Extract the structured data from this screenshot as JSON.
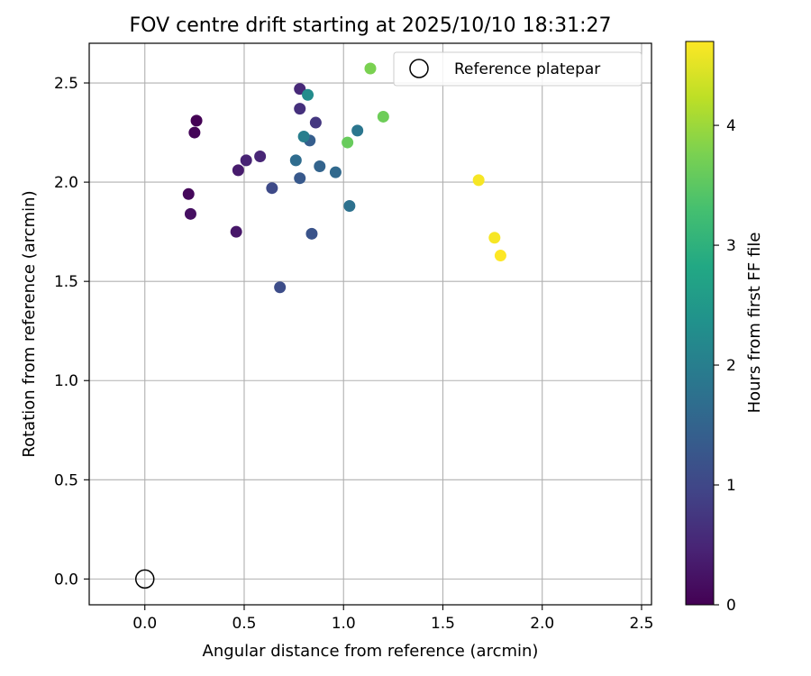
{
  "chart_data": {
    "type": "scatter",
    "title": "FOV centre drift starting at 2025/10/10 18:31:27",
    "xlabel": "Angular distance from reference (arcmin)",
    "ylabel": "Rotation from reference (arcmin)",
    "xlim": [
      -0.28,
      2.55
    ],
    "ylim": [
      -0.13,
      2.7
    ],
    "xticks": [
      0.0,
      0.5,
      1.0,
      1.5,
      2.0,
      2.5
    ],
    "xtick_labels": [
      "0.0",
      "0.5",
      "1.0",
      "1.5",
      "2.0",
      "2.5"
    ],
    "yticks": [
      0.0,
      0.5,
      1.0,
      1.5,
      2.0,
      2.5
    ],
    "ytick_labels": [
      "0.0",
      "0.5",
      "1.0",
      "1.5",
      "2.0",
      "2.5"
    ],
    "grid": true,
    "legend": {
      "placement": "top-right",
      "entries": [
        {
          "label": "",
          "marker": "filled-circle",
          "color": "#7ad151"
        },
        {
          "label": "Reference platepar",
          "marker": "open-circle",
          "color": "#000000"
        }
      ]
    },
    "colorbar": {
      "label": "Hours from first FF file",
      "range": [
        0,
        4.7
      ],
      "ticks": [
        0,
        1,
        2,
        3,
        4
      ],
      "tick_labels": [
        "0",
        "1",
        "2",
        "3",
        "4"
      ],
      "colormap": "viridis"
    },
    "reference_point": {
      "x": 0.0,
      "y": 0.0,
      "label": "Reference platepar"
    },
    "series": [
      {
        "points": [
          {
            "x": 0.26,
            "y": 2.31,
            "hours": 0.02
          },
          {
            "x": 0.25,
            "y": 2.25,
            "hours": 0.05
          },
          {
            "x": 0.22,
            "y": 1.94,
            "hours": 0.1
          },
          {
            "x": 0.23,
            "y": 1.84,
            "hours": 0.2
          },
          {
            "x": 0.46,
            "y": 1.75,
            "hours": 0.3
          },
          {
            "x": 0.47,
            "y": 2.06,
            "hours": 0.35
          },
          {
            "x": 0.51,
            "y": 2.11,
            "hours": 0.45
          },
          {
            "x": 0.58,
            "y": 2.13,
            "hours": 0.5
          },
          {
            "x": 0.78,
            "y": 2.47,
            "hours": 0.55
          },
          {
            "x": 0.78,
            "y": 2.37,
            "hours": 0.65
          },
          {
            "x": 0.86,
            "y": 2.3,
            "hours": 0.75
          },
          {
            "x": 0.64,
            "y": 1.97,
            "hours": 1.05
          },
          {
            "x": 0.68,
            "y": 1.47,
            "hours": 1.1
          },
          {
            "x": 0.84,
            "y": 1.74,
            "hours": 1.2
          },
          {
            "x": 0.78,
            "y": 2.02,
            "hours": 1.3
          },
          {
            "x": 0.83,
            "y": 2.21,
            "hours": 1.4
          },
          {
            "x": 0.88,
            "y": 2.08,
            "hours": 1.5
          },
          {
            "x": 0.96,
            "y": 2.05,
            "hours": 1.6
          },
          {
            "x": 0.76,
            "y": 2.11,
            "hours": 1.65
          },
          {
            "x": 1.03,
            "y": 1.88,
            "hours": 1.75
          },
          {
            "x": 1.07,
            "y": 2.26,
            "hours": 1.85
          },
          {
            "x": 0.8,
            "y": 2.23,
            "hours": 2.0
          },
          {
            "x": 0.82,
            "y": 2.44,
            "hours": 2.25
          },
          {
            "x": 1.02,
            "y": 2.2,
            "hours": 3.6
          },
          {
            "x": 1.2,
            "y": 2.33,
            "hours": 3.65
          },
          {
            "x": 1.68,
            "y": 2.01,
            "hours": 4.65
          },
          {
            "x": 1.76,
            "y": 1.72,
            "hours": 4.65
          },
          {
            "x": 1.79,
            "y": 1.63,
            "hours": 4.7
          }
        ]
      }
    ]
  }
}
